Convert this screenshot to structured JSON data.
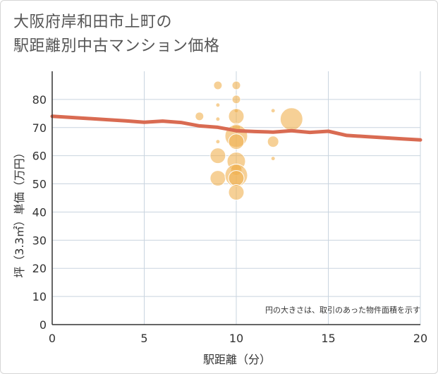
{
  "title_lines": [
    "大阪府岸和田市上町の",
    "駅距離別中古マンション価格"
  ],
  "colors": {
    "bubble": "#f0b050",
    "line": "#d96b52",
    "grid": "#c9d4df",
    "axis": "#333333"
  },
  "chart_data": {
    "type": "scatter",
    "xlabel": "駅距離（分）",
    "ylabel": "坪（3.3㎡）単価（万円）",
    "xlim": [
      0,
      20
    ],
    "ylim": [
      0,
      90
    ],
    "xticks": [
      0,
      5,
      10,
      15,
      20
    ],
    "yticks": [
      0,
      10,
      20,
      30,
      40,
      50,
      60,
      70,
      80
    ],
    "grid": true,
    "note": "円の大きさは、取引のあった物件面積を示す",
    "bubbles": [
      {
        "x": 8,
        "y": 74,
        "size": 6
      },
      {
        "x": 9,
        "y": 85,
        "size": 6
      },
      {
        "x": 9,
        "y": 78,
        "size": 3
      },
      {
        "x": 9,
        "y": 73,
        "size": 3
      },
      {
        "x": 9,
        "y": 65,
        "size": 3
      },
      {
        "x": 9,
        "y": 60,
        "size": 11
      },
      {
        "x": 9,
        "y": 52,
        "size": 11
      },
      {
        "x": 10,
        "y": 85,
        "size": 6
      },
      {
        "x": 10,
        "y": 80,
        "size": 6
      },
      {
        "x": 10,
        "y": 76,
        "size": 3
      },
      {
        "x": 10,
        "y": 74,
        "size": 11
      },
      {
        "x": 10,
        "y": 70,
        "size": 6
      },
      {
        "x": 10,
        "y": 67,
        "size": 16
      },
      {
        "x": 10,
        "y": 65,
        "size": 11
      },
      {
        "x": 10,
        "y": 58,
        "size": 13
      },
      {
        "x": 10,
        "y": 55,
        "size": 8
      },
      {
        "x": 10,
        "y": 53,
        "size": 16
      },
      {
        "x": 10,
        "y": 52,
        "size": 11
      },
      {
        "x": 10,
        "y": 47,
        "size": 11
      },
      {
        "x": 12,
        "y": 76,
        "size": 3
      },
      {
        "x": 12,
        "y": 65,
        "size": 8
      },
      {
        "x": 12,
        "y": 59,
        "size": 3
      },
      {
        "x": 13,
        "y": 73,
        "size": 16
      }
    ],
    "trend": {
      "x": [
        0,
        1,
        2,
        3,
        4,
        5,
        6,
        7,
        8,
        9,
        10,
        11,
        12,
        13,
        14,
        15,
        16,
        17,
        18,
        19,
        20
      ],
      "y": [
        74,
        73.6,
        73.2,
        72.8,
        72.4,
        71.9,
        72.3,
        71.8,
        70.6,
        70.1,
        68.9,
        68.6,
        68.4,
        68.9,
        68.3,
        68.7,
        67.2,
        66.8,
        66.4,
        66.0,
        65.6
      ]
    }
  }
}
